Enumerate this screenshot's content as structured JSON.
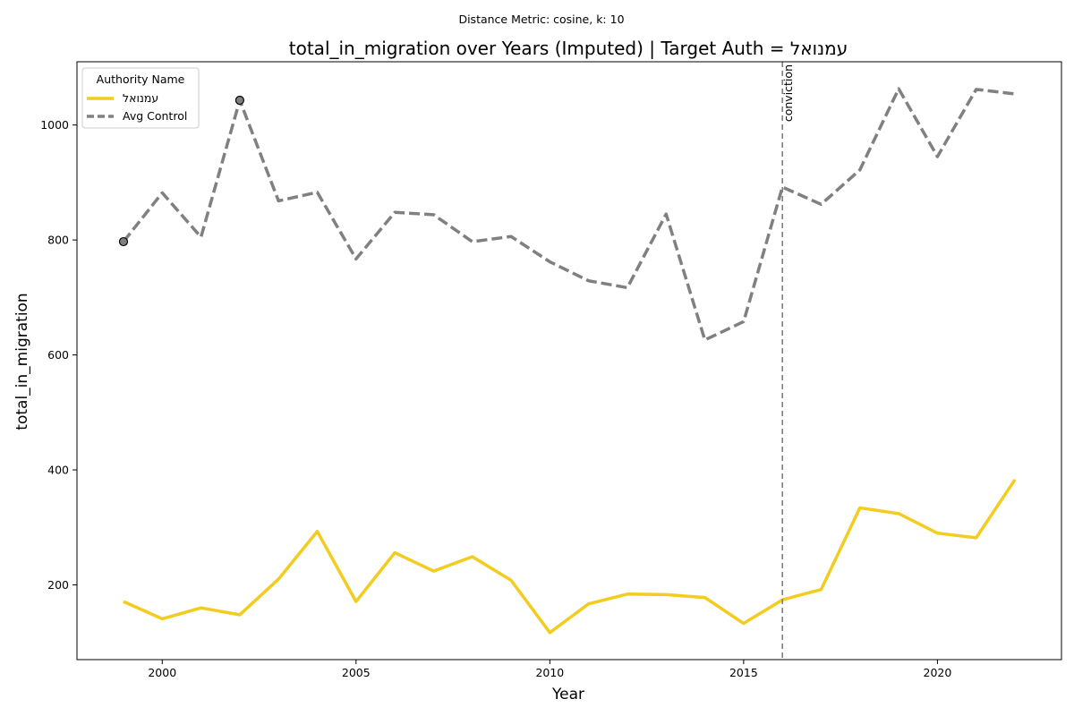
{
  "chart_data": {
    "type": "line",
    "suptitle": "Distance Metric: cosine, k: 10",
    "title": "total_in_migration over Years (Imputed) | Target Auth = עמנואל",
    "xlabel": "Year",
    "ylabel": "total_in_migration",
    "xlim": [
      1997.8,
      2023.2
    ],
    "ylim": [
      70,
      1110
    ],
    "x_ticks": [
      2000,
      2005,
      2010,
      2015,
      2020
    ],
    "y_ticks": [
      200,
      400,
      600,
      800,
      1000
    ],
    "x": [
      1999,
      2000,
      2001,
      2002,
      2003,
      2004,
      2005,
      2006,
      2007,
      2008,
      2009,
      2010,
      2011,
      2012,
      2013,
      2014,
      2015,
      2016,
      2017,
      2018,
      2019,
      2020,
      2021,
      2022
    ],
    "series": [
      {
        "name": "עמנואל",
        "color": "#f2cc1e",
        "style": "solid",
        "values": [
          171,
          141,
          160,
          148,
          210,
          293,
          171,
          256,
          224,
          249,
          208,
          117,
          167,
          184,
          183,
          178,
          133,
          174,
          192,
          334,
          324,
          290,
          282,
          383
        ]
      },
      {
        "name": "Avg Control",
        "color": "#808080",
        "style": "dashed",
        "values": [
          797,
          882,
          805,
          1043,
          868,
          883,
          767,
          848,
          844,
          797,
          806,
          762,
          729,
          717,
          845,
          626,
          658,
          892,
          862,
          922,
          1063,
          945,
          1062,
          1054
        ]
      }
    ],
    "markers": [
      {
        "series": "Avg Control",
        "x": 1999,
        "y": 797,
        "color": "#808080"
      },
      {
        "series": "Avg Control",
        "x": 2002,
        "y": 1043,
        "color": "#808080"
      }
    ],
    "vline": {
      "x": 2016,
      "label": "conviction",
      "color": "#808080"
    },
    "legend": {
      "title": "Authority Name",
      "position": "top-left"
    },
    "grid": false
  }
}
